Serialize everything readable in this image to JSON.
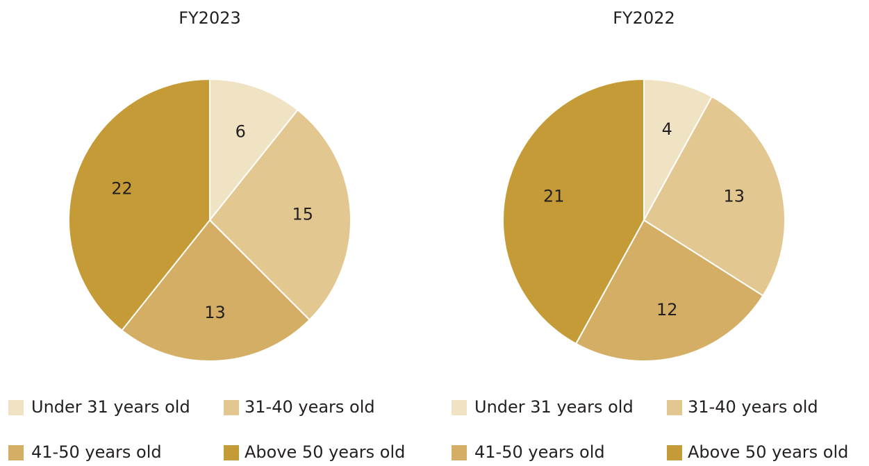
{
  "chart_data": [
    {
      "type": "pie",
      "title": "FY2023",
      "categories": [
        "Under 31 years old",
        "31-40 years old",
        "41-50 years old",
        "Above 50 years old"
      ],
      "values": [
        6,
        15,
        13,
        22
      ],
      "colors": [
        "#f0e3c4",
        "#e2c791",
        "#d4ae64",
        "#c49b36"
      ]
    },
    {
      "type": "pie",
      "title": "FY2022",
      "categories": [
        "Under 31 years old",
        "31-40 years old",
        "41-50 years old",
        "Above 50 years old"
      ],
      "values": [
        4,
        13,
        12,
        21
      ],
      "colors": [
        "#f0e3c4",
        "#e2c791",
        "#d4ae64",
        "#c49b36"
      ]
    }
  ]
}
